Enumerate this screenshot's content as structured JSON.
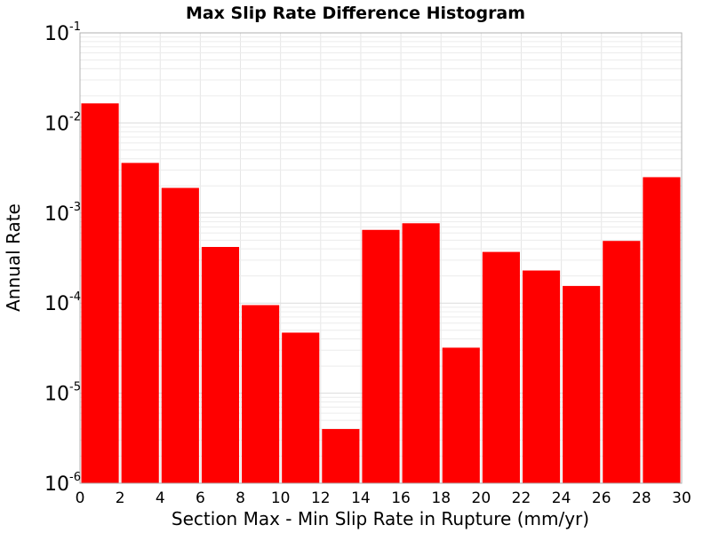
{
  "chart_data": {
    "type": "bar",
    "title": "Max Slip Rate Difference Histogram",
    "xlabel": "Section Max - Min Slip Rate in Rupture (mm/yr)",
    "ylabel": "Annual Rate",
    "yscale": "log",
    "ylim": [
      1e-06,
      0.1
    ],
    "xlim": [
      0,
      30
    ],
    "grid": true,
    "bar_color": "#ff0000",
    "bin_width": 2,
    "x": [
      1,
      3,
      5,
      7,
      9,
      11,
      13,
      15,
      17,
      19,
      21,
      23,
      25,
      27,
      29
    ],
    "values": [
      0.0165,
      0.0036,
      0.0019,
      0.00042,
      9.5e-05,
      4.7e-05,
      4e-06,
      0.00065,
      0.00077,
      3.2e-05,
      0.00037,
      0.00023,
      0.000155,
      0.00049,
      0.0025
    ],
    "xticks": [
      "0",
      "2",
      "4",
      "6",
      "8",
      "10",
      "12",
      "14",
      "16",
      "18",
      "20",
      "22",
      "24",
      "26",
      "28",
      "30"
    ],
    "xtick_values": [
      0,
      2,
      4,
      6,
      8,
      10,
      12,
      14,
      16,
      18,
      20,
      22,
      24,
      26,
      28,
      30
    ],
    "yticks": [
      {
        "base": "10",
        "exp": "-6",
        "value": 1e-06
      },
      {
        "base": "10",
        "exp": "-5",
        "value": 1e-05
      },
      {
        "base": "10",
        "exp": "-4",
        "value": 0.0001
      },
      {
        "base": "10",
        "exp": "-3",
        "value": 0.001
      },
      {
        "base": "10",
        "exp": "-2",
        "value": 0.01
      },
      {
        "base": "10",
        "exp": "-1",
        "value": 0.1
      }
    ]
  }
}
